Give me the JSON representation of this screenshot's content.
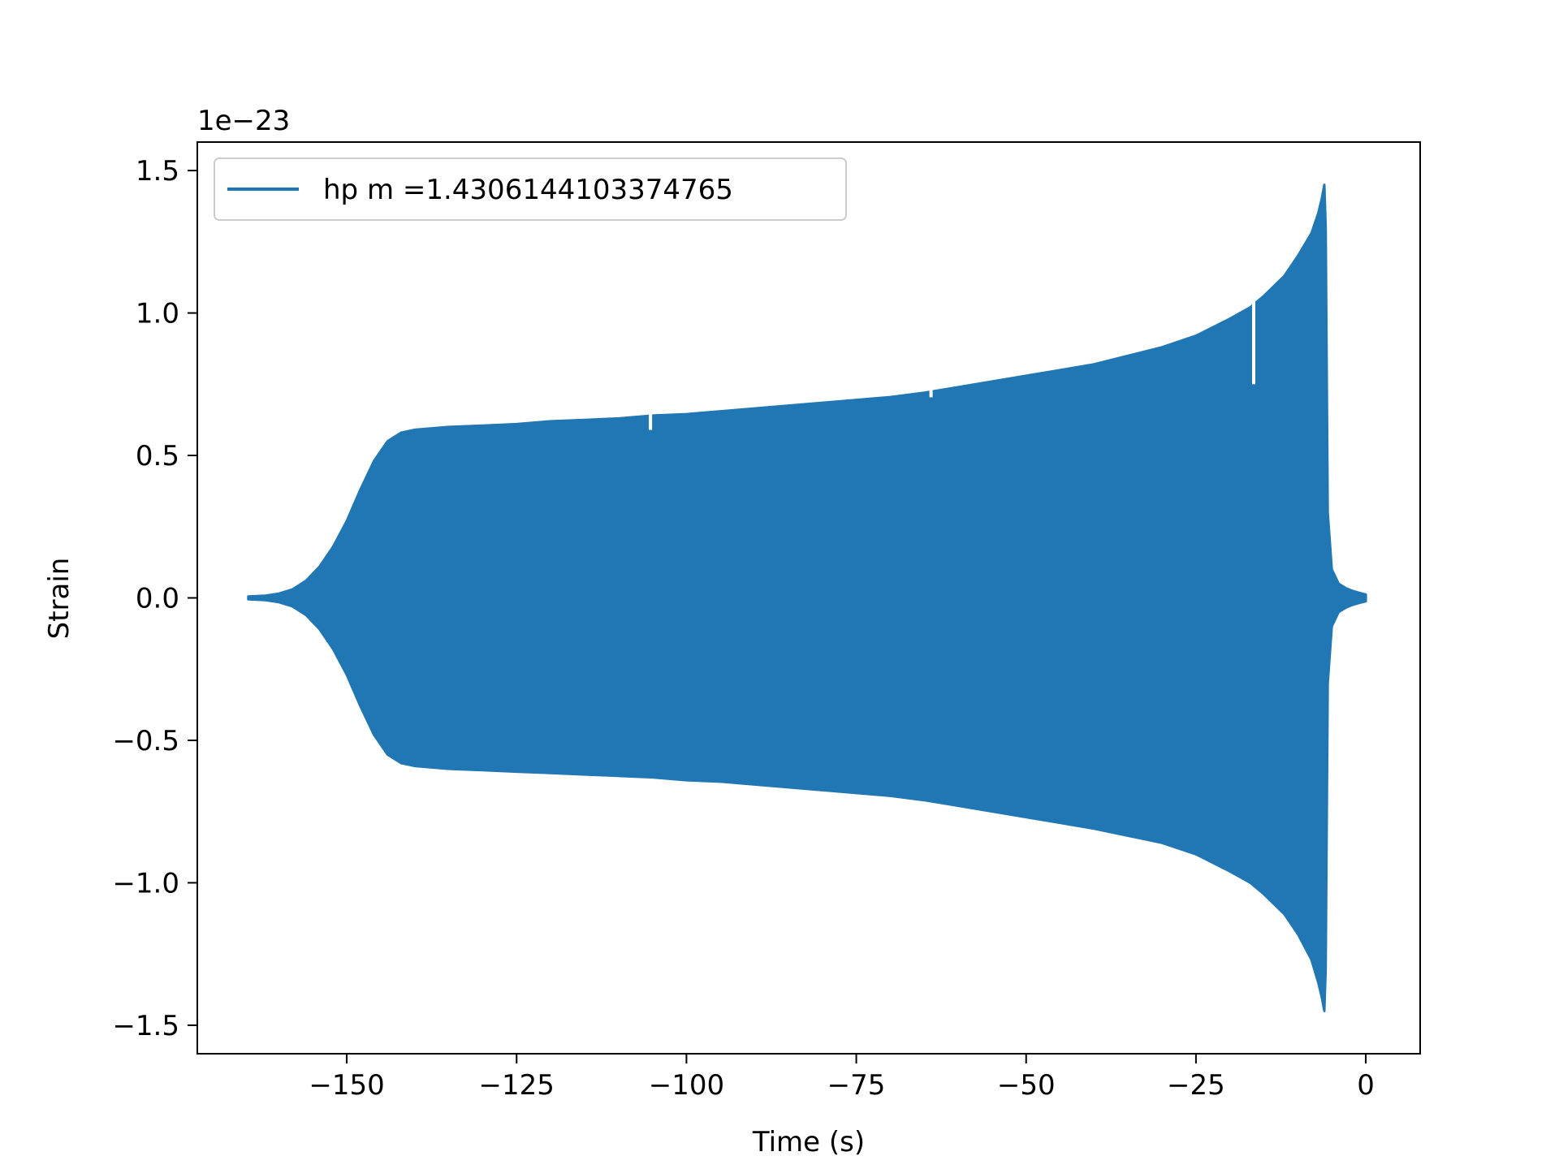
{
  "chart_data": {
    "type": "area",
    "xlabel": "Time (s)",
    "ylabel": "Strain",
    "offset_label": "1e−23",
    "x_ticks": [
      {
        "value": -150,
        "label": "−150"
      },
      {
        "value": -125,
        "label": "−125"
      },
      {
        "value": -100,
        "label": "−100"
      },
      {
        "value": -75,
        "label": "−75"
      },
      {
        "value": -50,
        "label": "−50"
      },
      {
        "value": -25,
        "label": "−25"
      },
      {
        "value": 0,
        "label": "0"
      }
    ],
    "y_ticks": [
      {
        "value": -1.5,
        "label": "−1.5"
      },
      {
        "value": -1.0,
        "label": "−1.0"
      },
      {
        "value": -0.5,
        "label": "−0.5"
      },
      {
        "value": 0.0,
        "label": "0.0"
      },
      {
        "value": 0.5,
        "label": "0.5"
      },
      {
        "value": 1.0,
        "label": "1.0"
      },
      {
        "value": 1.5,
        "label": "1.5"
      }
    ],
    "xlim": [
      -172.0,
      8.0
    ],
    "ylim": [
      -1.6,
      1.6
    ],
    "grid": false,
    "legend_position": "upper-left",
    "series": [
      {
        "name": "hp m =1.4306144103374765",
        "color": "#2077b4",
        "envelope": {
          "t": [
            -164.5,
            -162,
            -160,
            -158,
            -156,
            -154,
            -152,
            -150,
            -148,
            -146,
            -144,
            -142,
            -140,
            -135,
            -130,
            -125,
            -120,
            -115,
            -110,
            -105,
            -100,
            -95,
            -90,
            -85,
            -80,
            -75,
            -70,
            -65,
            -60,
            -55,
            -50,
            -45,
            -40,
            -35,
            -30,
            -25,
            -20,
            -17,
            -15,
            -12,
            -10,
            -8,
            -7,
            -6.5,
            -6.1,
            -5.9,
            -5.6,
            -5,
            -4,
            -3,
            -2,
            -1,
            0
          ],
          "upper": [
            0.005,
            0.008,
            0.015,
            0.03,
            0.06,
            0.11,
            0.18,
            0.27,
            0.38,
            0.48,
            0.55,
            0.58,
            0.59,
            0.6,
            0.605,
            0.61,
            0.62,
            0.625,
            0.63,
            0.64,
            0.645,
            0.655,
            0.665,
            0.675,
            0.685,
            0.695,
            0.705,
            0.72,
            0.74,
            0.76,
            0.78,
            0.8,
            0.82,
            0.85,
            0.88,
            0.92,
            0.98,
            1.02,
            1.06,
            1.13,
            1.2,
            1.28,
            1.35,
            1.4,
            1.45,
            1.3,
            0.3,
            0.1,
            0.05,
            0.035,
            0.025,
            0.018,
            0.012
          ],
          "lower": [
            -0.005,
            -0.008,
            -0.015,
            -0.03,
            -0.06,
            -0.11,
            -0.18,
            -0.27,
            -0.38,
            -0.48,
            -0.55,
            -0.58,
            -0.59,
            -0.6,
            -0.605,
            -0.61,
            -0.615,
            -0.62,
            -0.625,
            -0.63,
            -0.64,
            -0.645,
            -0.655,
            -0.665,
            -0.675,
            -0.685,
            -0.695,
            -0.71,
            -0.73,
            -0.75,
            -0.77,
            -0.79,
            -0.81,
            -0.835,
            -0.86,
            -0.9,
            -0.96,
            -1.0,
            -1.04,
            -1.11,
            -1.18,
            -1.27,
            -1.35,
            -1.4,
            -1.45,
            -1.3,
            -0.3,
            -0.1,
            -0.05,
            -0.035,
            -0.025,
            -0.018,
            -0.012
          ]
        }
      }
    ]
  }
}
